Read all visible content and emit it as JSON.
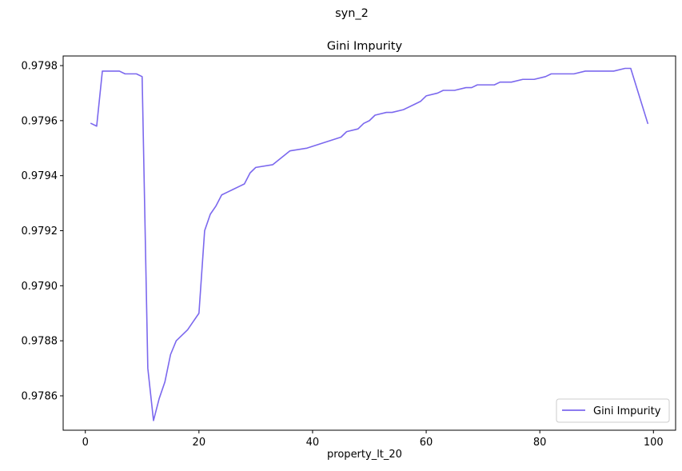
{
  "suptitle": "syn_2",
  "chart_data": {
    "type": "line",
    "title": "Gini Impurity",
    "xlabel": "property_lt_20",
    "ylabel": "",
    "xlim": [
      -3.9,
      103.9
    ],
    "ylim": [
      0.978475,
      0.979835
    ],
    "x_ticks": [
      0,
      20,
      40,
      60,
      80,
      100
    ],
    "y_ticks": [
      0.9786,
      0.9788,
      0.979,
      0.9792,
      0.9794,
      0.9796,
      0.9798
    ],
    "y_tick_labels": [
      "0.9786",
      "0.9788",
      "0.9790",
      "0.9792",
      "0.9794",
      "0.9796",
      "0.9798"
    ],
    "legend": {
      "position": "bottom-right"
    },
    "grid": false,
    "series": [
      {
        "name": "Gini Impurity",
        "color": "#7b68ee",
        "x": [
          1,
          2,
          3,
          4,
          5,
          6,
          7,
          8,
          9,
          10,
          11,
          12,
          13,
          14,
          15,
          16,
          17,
          18,
          19,
          20,
          21,
          22,
          23,
          24,
          25,
          26,
          27,
          28,
          29,
          30,
          33,
          36,
          39,
          42,
          45,
          46,
          48,
          49,
          50,
          51,
          53,
          54,
          56,
          58,
          59,
          60,
          62,
          63,
          64,
          65,
          67,
          68,
          69,
          70,
          72,
          73,
          75,
          77,
          79,
          81,
          82,
          83,
          85,
          86,
          88,
          90,
          91,
          92,
          93,
          95,
          96,
          99
        ],
        "values": [
          0.97959,
          0.97958,
          0.97978,
          0.97978,
          0.97978,
          0.97978,
          0.97977,
          0.97977,
          0.97977,
          0.97976,
          0.9787,
          0.97851,
          0.97859,
          0.97865,
          0.97875,
          0.9788,
          0.97882,
          0.97884,
          0.97887,
          0.9789,
          0.9792,
          0.97926,
          0.97929,
          0.97933,
          0.97934,
          0.97935,
          0.97936,
          0.97937,
          0.97941,
          0.97943,
          0.97944,
          0.97949,
          0.9795,
          0.97952,
          0.97954,
          0.97956,
          0.97957,
          0.97959,
          0.9796,
          0.97962,
          0.97963,
          0.97963,
          0.97964,
          0.97966,
          0.97967,
          0.97969,
          0.9797,
          0.97971,
          0.97971,
          0.97971,
          0.97972,
          0.97972,
          0.97973,
          0.97973,
          0.97973,
          0.97974,
          0.97974,
          0.97975,
          0.97975,
          0.97976,
          0.97977,
          0.97977,
          0.97977,
          0.97977,
          0.97978,
          0.97978,
          0.97978,
          0.97978,
          0.97978,
          0.97979,
          0.97979,
          0.97959
        ]
      }
    ]
  }
}
